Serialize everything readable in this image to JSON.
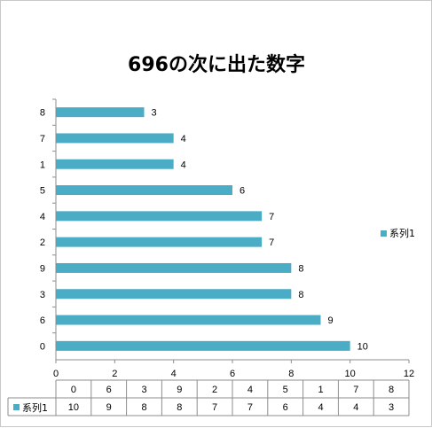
{
  "chart_data": {
    "type": "bar",
    "orientation": "horizontal",
    "title": "696の次に出た数字",
    "categories": [
      "0",
      "6",
      "3",
      "9",
      "2",
      "4",
      "5",
      "1",
      "7",
      "8"
    ],
    "series": [
      {
        "name": "系列1",
        "values": [
          10,
          9,
          8,
          8,
          7,
          7,
          6,
          4,
          4,
          3
        ]
      }
    ],
    "xlim": [
      0,
      12
    ],
    "x_ticks": [
      "0",
      "2",
      "4",
      "6",
      "8",
      "10",
      "12"
    ],
    "grid": false,
    "legend": "right",
    "data_table": true,
    "colors": {
      "series": "#4bacc6"
    }
  }
}
